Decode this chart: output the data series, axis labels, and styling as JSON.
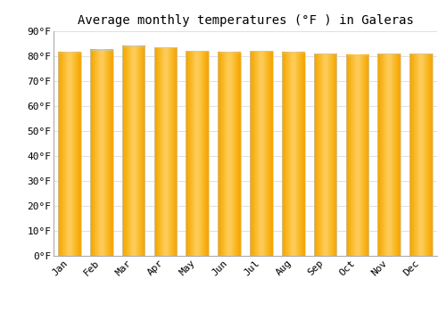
{
  "title": "Average monthly temperatures (°F ) in Galeras",
  "months": [
    "Jan",
    "Feb",
    "Mar",
    "Apr",
    "May",
    "Jun",
    "Jul",
    "Aug",
    "Sep",
    "Oct",
    "Nov",
    "Dec"
  ],
  "values": [
    81.5,
    82.5,
    84.0,
    83.5,
    82.0,
    81.5,
    82.0,
    81.5,
    81.0,
    80.5,
    81.0,
    81.0
  ],
  "ylim": [
    0,
    90
  ],
  "yticks": [
    0,
    10,
    20,
    30,
    40,
    50,
    60,
    70,
    80,
    90
  ],
  "bar_color_center": "#FFD060",
  "bar_color_edge": "#F5A800",
  "bar_edge_color": "#C8C8C8",
  "grid_color": "#E0E0E0",
  "background_color": "#FFFFFF",
  "title_fontsize": 10,
  "tick_fontsize": 8
}
